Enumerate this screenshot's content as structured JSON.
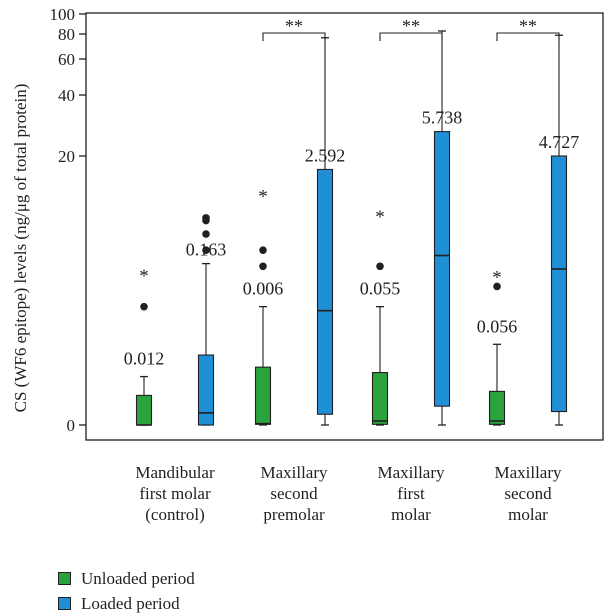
{
  "chart_data": {
    "type": "box",
    "ylabel": "CS (WF6 epitope) levels (ng/μg of total protein)",
    "y_scale": "nonlinear (compressed upper range)",
    "y_ticks": [
      "0",
      "20",
      "40",
      "60",
      "80",
      "100"
    ],
    "categories": [
      "Mandibular first molar (control)",
      "Maxillary second premolar",
      "Maxillary first molar",
      "Maxillary second molar"
    ],
    "category_lines": [
      [
        "Mandibular",
        "first molar",
        "(control)"
      ],
      [
        "Maxillary",
        "second",
        "premolar"
      ],
      [
        "Maxillary",
        "first",
        "molar"
      ],
      [
        "Maxillary",
        "second",
        "molar"
      ]
    ],
    "series": [
      {
        "name": "Unloaded period",
        "color": "#2aa33c",
        "boxes": [
          {
            "min": 0,
            "q1": 0,
            "median": 0,
            "q3": 2.2,
            "max": 3.6,
            "outliers": [
              8.8
            ],
            "extremes": [
              11.3
            ]
          },
          {
            "min": 0,
            "q1": 0.05,
            "median": 0.1,
            "q3": 4.3,
            "max": 8.8,
            "outliers": [
              11.8,
              13.0
            ],
            "extremes": [
              17.2
            ]
          },
          {
            "min": 0,
            "q1": 0.05,
            "median": 0.3,
            "q3": 3.9,
            "max": 8.8,
            "outliers": [
              11.8
            ],
            "extremes": [
              15.7
            ]
          },
          {
            "min": 0,
            "q1": 0.05,
            "median": 0.3,
            "q3": 2.5,
            "max": 6.0,
            "outliers": [
              10.3
            ],
            "extremes": [
              11.2
            ]
          }
        ]
      },
      {
        "name": "Loaded period",
        "color": "#1f8fd6",
        "boxes": [
          {
            "min": 0,
            "q1": 0,
            "median": 0.9,
            "q3": 5.2,
            "max": 12.0,
            "outliers": [
              13.0,
              14.2,
              15.2,
              15.4
            ],
            "extremes": []
          },
          {
            "min": 0,
            "q1": 0.8,
            "median": 8.5,
            "q3": 19.0,
            "max": 77,
            "outliers": [],
            "extremes": []
          },
          {
            "min": 0,
            "q1": 1.4,
            "median": 12.6,
            "q3": 28,
            "max": 83,
            "outliers": [],
            "extremes": []
          },
          {
            "min": 0,
            "q1": 1.0,
            "median": 11.6,
            "q3": 20,
            "max": 79,
            "outliers": [],
            "extremes": []
          }
        ]
      }
    ],
    "p_values": [
      "0.012",
      "0.006",
      "0.055",
      "0.056"
    ],
    "loaded_labels": [
      "0.163",
      "2.592",
      "5.738",
      "4.727"
    ],
    "significance": [
      "",
      "**",
      "**",
      "**"
    ],
    "legend_position": "bottom-left"
  }
}
